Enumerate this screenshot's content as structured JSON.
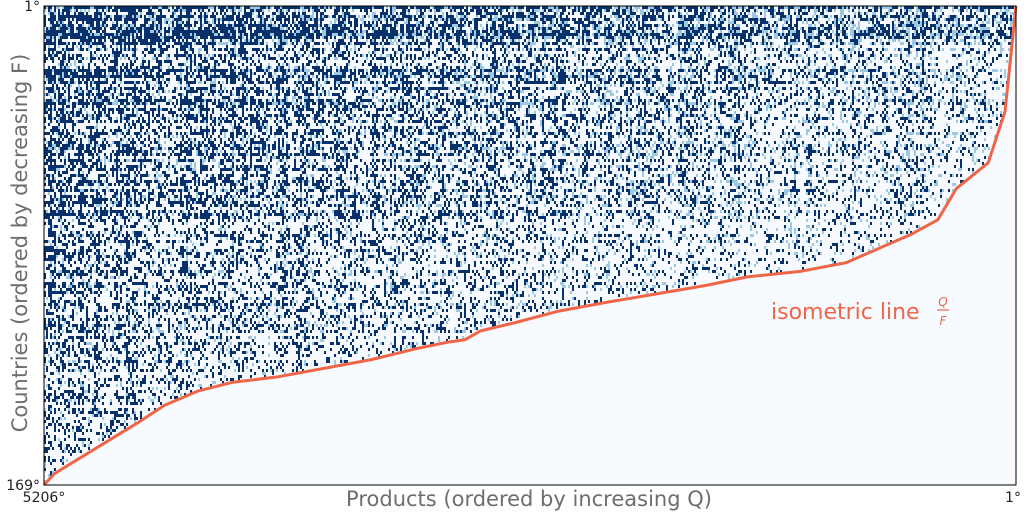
{
  "chart_data": {
    "type": "heatmap",
    "title": "",
    "xlabel": "Products (ordered by increasing Q)",
    "ylabel": "Countries (ordered by decreasing F)",
    "x_ticks": {
      "left": "5206°",
      "right": "1°"
    },
    "y_ticks": {
      "top": "1°",
      "bottom": "169°"
    },
    "xlim": [
      5206,
      1
    ],
    "ylim": [
      169,
      1
    ],
    "grid": false,
    "legend": "none",
    "colors": {
      "matrix_dense": "#08306b",
      "matrix_light": "#9ecae1",
      "background": "#f7fbff",
      "isometric_line": "#ef6548"
    },
    "annotation": {
      "text": "isometric line",
      "fraction_numerator": "Q",
      "fraction_denominator": "F"
    },
    "isometric_line": {
      "x": [
        5206,
        5150,
        5050,
        4950,
        4800,
        4700,
        4560,
        4380,
        4200,
        3950,
        3700,
        3450,
        3200,
        3050,
        2950,
        2870,
        2680,
        2450,
        2200,
        1930,
        1660,
        1440,
        1150,
        910,
        770,
        560,
        420,
        320,
        150,
        60,
        1
      ],
      "y": [
        169,
        165,
        161,
        157,
        151,
        147,
        141,
        136,
        133,
        131,
        128,
        125,
        121,
        119,
        118,
        115,
        112,
        108,
        105,
        102,
        99,
        96,
        94,
        91,
        87,
        81,
        76,
        65,
        56,
        38,
        1
      ]
    }
  }
}
